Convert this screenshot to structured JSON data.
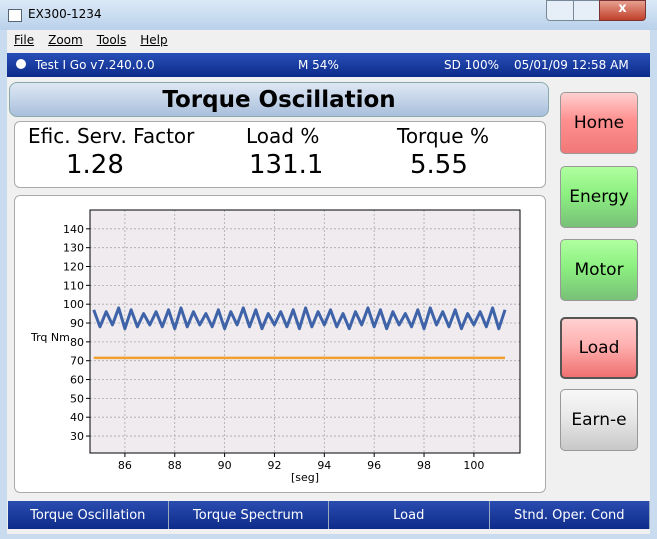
{
  "window": {
    "title": "EX300-1234"
  },
  "menu": [
    "File",
    "Zoom",
    "Tools",
    "Help"
  ],
  "status": {
    "app": "Test I Go v7.240.0.0",
    "memory": "M 54%",
    "storage": "SD 100%",
    "datetime": "05/01/09 12:58 AM"
  },
  "header": {
    "title": "Torque Oscillation"
  },
  "metrics": [
    {
      "label": "Efic. Serv. Factor",
      "value": 1.28
    },
    {
      "label": "Load %",
      "value": 131.1
    },
    {
      "label": "Torque %",
      "value": 5.55
    }
  ],
  "buttons": [
    "Home",
    "Energy",
    "Motor",
    "Load",
    "Earn-e"
  ],
  "tabs": [
    "Torque Oscillation",
    "Torque Spectrum",
    "Load",
    "Stnd. Oper. Cond"
  ],
  "chart_data": {
    "type": "line",
    "ylabel": "Trq Nm",
    "xlabel": "[seg]",
    "xlim": [
      84.6,
      101.85
    ],
    "xticks": [
      86,
      88,
      90,
      92,
      94,
      96,
      98,
      100
    ],
    "ylim": [
      21,
      150
    ],
    "yticks": [
      30,
      40,
      50,
      60,
      70,
      80,
      90,
      100,
      110,
      120,
      130,
      140
    ],
    "grid": true,
    "series": [
      {
        "color": "#3f63a8",
        "x": [
          84.75,
          85,
          85.25,
          85.5,
          85.75,
          86,
          86.25,
          86.5,
          86.75,
          87,
          87.25,
          87.5,
          87.75,
          88,
          88.25,
          88.5,
          88.75,
          89,
          89.25,
          89.5,
          89.75,
          90,
          90.25,
          90.5,
          90.75,
          91,
          91.25,
          91.5,
          91.75,
          92,
          92.25,
          92.5,
          92.75,
          93,
          93.25,
          93.5,
          93.75,
          94,
          94.25,
          94.5,
          94.75,
          95,
          95.25,
          95.5,
          95.75,
          96,
          96.25,
          96.5,
          96.75,
          97,
          97.25,
          97.5,
          97.75,
          98,
          98.25,
          98.5,
          98.75,
          99,
          99.25,
          99.5,
          99.75,
          100,
          100.25,
          100.5,
          100.75,
          101,
          101.25
        ],
        "values": [
          97,
          88,
          96,
          89,
          98,
          87,
          97,
          88,
          95,
          89,
          96,
          88,
          97,
          87,
          98,
          88,
          96,
          89,
          95,
          88,
          97,
          87,
          96,
          89,
          98,
          88,
          97,
          87,
          95,
          89,
          96,
          88,
          97,
          87,
          98,
          88,
          96,
          89,
          97,
          88,
          95,
          87,
          96,
          89,
          98,
          88,
          97,
          87,
          96,
          89,
          95,
          88,
          97,
          87,
          98,
          89,
          96,
          88,
          97,
          87,
          95,
          89,
          96,
          88,
          98,
          87,
          97
        ]
      },
      {
        "color": "#f0a030",
        "x": [
          84.75,
          101.25
        ],
        "values": [
          71.5,
          71.5
        ]
      }
    ]
  }
}
